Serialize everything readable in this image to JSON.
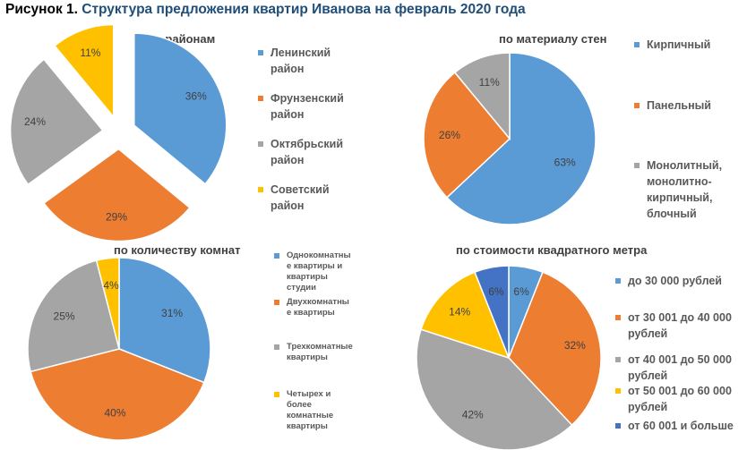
{
  "title": {
    "lead": "Рисунок 1.",
    "rest": "Структура предложения квартир Иванова на февраль 2020 года"
  },
  "chart_data": [
    {
      "type": "pie",
      "title": "по районам",
      "categories": [
        "Ленинский район",
        "Фрунзенский район",
        "Октябрьский район",
        "Советский район"
      ],
      "legend_lines": [
        [
          "Ленинский",
          "район"
        ],
        [
          "Фрунзенский",
          "район"
        ],
        [
          "Октябрьский",
          "район"
        ],
        [
          "Советский",
          "район"
        ]
      ],
      "values": [
        36,
        29,
        24,
        11
      ],
      "labels": [
        "36%",
        "29%",
        "24%",
        "11%"
      ],
      "colors": [
        "#5b9bd5",
        "#ed7d31",
        "#a5a5a5",
        "#ffc000"
      ],
      "exploded": true,
      "legend_position": "right"
    },
    {
      "type": "pie",
      "title": "по материалу стен",
      "categories": [
        "Кирпичный",
        "Панельный",
        "Монолитный, монолитно-кирпичный, блочный"
      ],
      "legend_lines": [
        [
          "Кирпичный"
        ],
        [
          "Панельный"
        ],
        [
          "Монолитный,",
          "монолитно-",
          "кирпичный,",
          "блочный"
        ]
      ],
      "values": [
        63,
        26,
        11
      ],
      "labels": [
        "63%",
        "26%",
        "11%"
      ],
      "colors": [
        "#5b9bd5",
        "#ed7d31",
        "#a5a5a5"
      ],
      "exploded": false,
      "legend_position": "right"
    },
    {
      "type": "pie",
      "title": "по количеству комнат",
      "categories": [
        "Однокомнатные квартиры и квартиры студии",
        "Двухкомнатные квартиры",
        "Трехкомнатные квартиры",
        "Четырех и более комнатные квартиры"
      ],
      "legend_lines": [
        [
          "Однокомнатны",
          "е квартиры и",
          "квартиры",
          "студии"
        ],
        [
          "Двухкомнатны",
          "е квартиры"
        ],
        [
          "Трехкомнатные",
          "квартиры"
        ],
        [
          "Четырех и",
          "более",
          "комнатные",
          "квартиры"
        ]
      ],
      "values": [
        31,
        40,
        25,
        4
      ],
      "labels": [
        "31%",
        "40%",
        "25%",
        "4%"
      ],
      "colors": [
        "#5b9bd5",
        "#ed7d31",
        "#a5a5a5",
        "#ffc000"
      ],
      "exploded": false,
      "legend_position": "right"
    },
    {
      "type": "pie",
      "title": "по стоимости квадратного метра",
      "categories": [
        "до 30 000 рублей",
        "от 30 001 до 40 000 рублей",
        "от 40 001 до 50 000 рублей",
        "от 50 001 до 60 000 рублей",
        "от 60 001 и больше"
      ],
      "legend_lines": [
        [
          "до 30 000 рублей"
        ],
        [
          "от 30 001 до 40 000",
          "рублей"
        ],
        [
          "от 40 001 до 50 000",
          "рублей"
        ],
        [
          "от 50 001 до 60 000",
          "рублей"
        ],
        [
          "от 60 001 и больше"
        ]
      ],
      "values": [
        6,
        32,
        42,
        14,
        6
      ],
      "labels": [
        "6%",
        "32%",
        "42%",
        "14%",
        "6%"
      ],
      "colors": [
        "#5b9bd5",
        "#ed7d31",
        "#a5a5a5",
        "#ffc000",
        "#4472c4"
      ],
      "exploded": false,
      "legend_position": "right"
    }
  ]
}
